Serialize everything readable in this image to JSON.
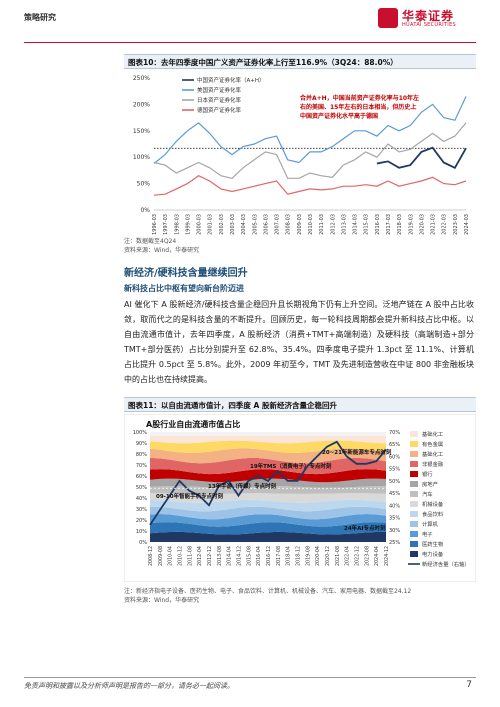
{
  "header": {
    "section_label": "策略研究",
    "logo_cn": "华泰证券",
    "logo_en": "HUATAI SECURITIES"
  },
  "figure10": {
    "title": "图表10：去年四季度中国广义资产证券化率上行至116.9%（3Q24：88.0%）",
    "source1": "注：数据截至4Q24",
    "source2": "资料来源：Wind，华泰研究",
    "annotation": "合并A+H，中国当前资产证券化率与10年左右的美国、15年左右的日本相当，但历史上中国资产证券化水平高于德国"
  },
  "section": {
    "title": "新经济/硬科技含量继续回升",
    "subtitle": "新科技占比中枢有望向新台阶迈进",
    "paragraph": "AI 催化下 A 股新经济/硬科技含量企稳回升且长期视角下仍有上升空间。泛地产链在 A 股中占比收敛，取而代之的是科技含量的不断提升。回顾历史，每一轮科技周期都会提升新科技占比中枢。以自由流通市值计，去年四季度，A 股新经济（消费+TMT+高端制造）及硬科技（高端制造+部分TMT+部分医药）占比分别提升至 62.8%、35.4%。四季度电子提升 1.3pct 至 11.1%、计算机占比提升 0.5pct 至 5.8%。此外，2009 年初至今，TMT 及先进制造营收在中证 800 非金融板块中的占比也在持续提高。"
  },
  "figure11": {
    "title": "图表11：以自由流通市值计，四季度 A 股新经济含量企稳回升",
    "note": "注：新经济指电子设备、医药生物、电子、食品饮料、计算机、机械设备、汽车、家用电器、数据截至24.12",
    "source": "资料来源：Wind，华泰研究"
  },
  "chart_data": [
    {
      "type": "line",
      "title": "",
      "x": [
        "1996-03",
        "1997-03",
        "1998-03",
        "1999-03",
        "2000-03",
        "2001-03",
        "2002-03",
        "2003-03",
        "2004-03",
        "2005-03",
        "2006-03",
        "2007-03",
        "2008-03",
        "2009-03",
        "2010-03",
        "2011-03",
        "2012-03",
        "2013-03",
        "2014-03",
        "2015-03",
        "2016-03",
        "2017-03",
        "2018-03",
        "2019-03",
        "2020-03",
        "2021-03",
        "2022-03",
        "2023-03",
        "2024-03"
      ],
      "ylim": [
        0,
        250
      ],
      "yticks": [
        "0%",
        "50%",
        "100%",
        "150%",
        "200%",
        "250%"
      ],
      "reference_line": 116.9,
      "series": [
        {
          "name": "中国资产证券化率（A+H）",
          "color": "#1f3864",
          "values": [
            null,
            null,
            null,
            null,
            null,
            null,
            null,
            null,
            null,
            null,
            null,
            null,
            null,
            null,
            null,
            null,
            null,
            null,
            null,
            null,
            88,
            92,
            80,
            85,
            110,
            118,
            90,
            80,
            117
          ]
        },
        {
          "name": "美国资产证券化率",
          "color": "#5b9bd5",
          "values": [
            88,
            105,
            130,
            150,
            165,
            145,
            120,
            105,
            120,
            125,
            135,
            140,
            95,
            90,
            110,
            110,
            120,
            135,
            150,
            150,
            140,
            160,
            150,
            160,
            185,
            200,
            175,
            170,
            215
          ]
        },
        {
          "name": "日本资产证券化率",
          "color": "#a6a6a6",
          "values": [
            90,
            85,
            70,
            80,
            90,
            80,
            65,
            60,
            80,
            95,
            110,
            105,
            60,
            60,
            70,
            65,
            62,
            85,
            95,
            110,
            100,
            125,
            110,
            115,
            130,
            145,
            130,
            140,
            165
          ]
        },
        {
          "name": "德国资产证券化率",
          "color": "#e06666",
          "values": [
            28,
            30,
            40,
            50,
            65,
            55,
            40,
            35,
            40,
            45,
            50,
            55,
            30,
            35,
            40,
            38,
            40,
            45,
            45,
            48,
            45,
            55,
            45,
            50,
            55,
            62,
            50,
            48,
            55
          ]
        }
      ]
    },
    {
      "type": "area",
      "title": "A股行业自由流通市值占比",
      "x": [
        "2008-12",
        "2009-08",
        "2010-04",
        "2010-12",
        "2011-08",
        "2012-04",
        "2012-12",
        "2013-08",
        "2014-04",
        "2014-12",
        "2015-08",
        "2016-04",
        "2016-12",
        "2017-08",
        "2018-04",
        "2018-12",
        "2019-08",
        "2020-04",
        "2020-12",
        "2021-08",
        "2022-04",
        "2022-12",
        "2023-08",
        "2024-04",
        "2024-12"
      ],
      "left_yticks": [
        "0%",
        "10%",
        "20%",
        "30%",
        "40%",
        "50%",
        "60%",
        "70%",
        "80%",
        "90%",
        "100%"
      ],
      "right_yticks": [
        "25%",
        "30%",
        "35%",
        "40%",
        "45%",
        "50%",
        "55%",
        "60%",
        "65%",
        "70%"
      ],
      "legend": [
        "基础化工",
        "有色金属",
        "基础化工",
        "非银金融",
        "银行",
        "房地产",
        "汽车",
        "机械设备",
        "食品饮料",
        "计算机",
        "电子",
        "医药生物",
        "电力设备",
        "新经济含量（右轴）"
      ],
      "new_economy_share": [
        32,
        38,
        44,
        50,
        46,
        44,
        40,
        48,
        50,
        44,
        50,
        52,
        50,
        54,
        50,
        50,
        56,
        60,
        64,
        66,
        60,
        57,
        57,
        58,
        62.8
      ],
      "annotations": [
        "20~21年新能源车专点时刻",
        "19年TMS（消费电子）专点时刻",
        "13年手游（传媒）专点时刻",
        "09-10年智能手机专点时刻",
        "24年AI专点时刻"
      ]
    }
  ],
  "footer": {
    "disclaimer": "免责声明和披露以及分析师声明是报告的一部分，请务必一起阅读。",
    "page": "7"
  }
}
